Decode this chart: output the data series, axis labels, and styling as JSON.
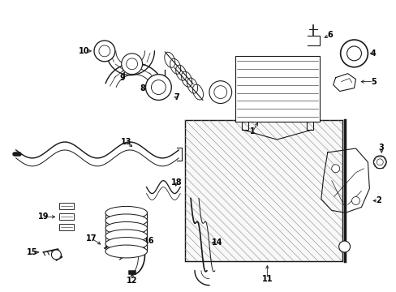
{
  "bg_color": "#ffffff",
  "line_color": "#1a1a1a",
  "label_color": "#000000",
  "figsize": [
    4.89,
    3.6
  ],
  "dpi": 100,
  "lw": 0.8
}
